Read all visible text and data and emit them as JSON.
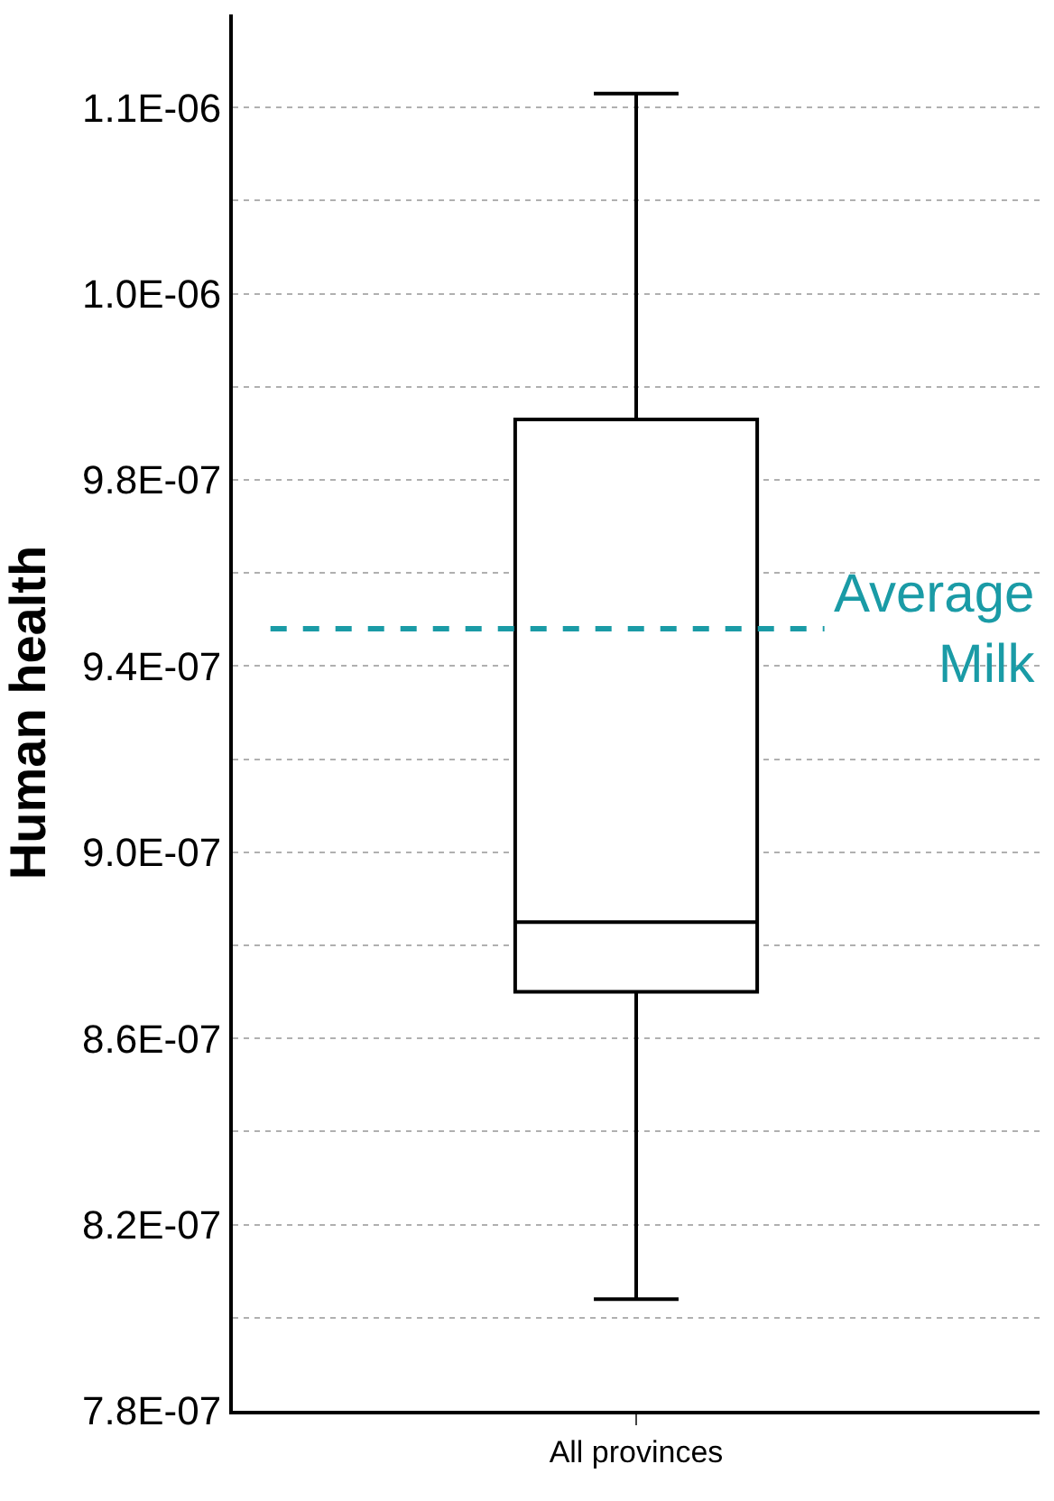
{
  "chart_data": {
    "type": "box",
    "ylabel": "Human health",
    "categories": [
      "All provinces"
    ],
    "series": [
      {
        "color": "#000000",
        "boxes": [
          {
            "low": 8.04e-07,
            "q1": 8.7e-07,
            "median": 8.85e-07,
            "q3": 9.93e-07,
            "high": 1.063e-06
          }
        ]
      }
    ],
    "ylim": [
      7.8e-07,
      1.08e-06
    ],
    "yticks": [
      {
        "value": 7.8e-07,
        "label": "7.8E-07"
      },
      {
        "value": 8e-07,
        "label": null
      },
      {
        "value": 8.2e-07,
        "label": "8.2E-07"
      },
      {
        "value": 8.4e-07,
        "label": null
      },
      {
        "value": 8.6e-07,
        "label": "8.6E-07"
      },
      {
        "value": 8.8e-07,
        "label": null
      },
      {
        "value": 9e-07,
        "label": "9.0E-07"
      },
      {
        "value": 9.2e-07,
        "label": null
      },
      {
        "value": 9.4e-07,
        "label": "9.4E-07"
      },
      {
        "value": 9.6e-07,
        "label": null
      },
      {
        "value": 9.8e-07,
        "label": "9.8E-07"
      },
      {
        "value": 1e-06,
        "label": null
      },
      {
        "value": 1.02e-06,
        "label": "1.0E-06"
      },
      {
        "value": 1.04e-06,
        "label": null
      },
      {
        "value": 1.06e-06,
        "label": "1.1E-06"
      }
    ],
    "ref_lines": [
      {
        "axis": "y",
        "value": 9.48e-07,
        "label": "Average Milk",
        "color": "#1a9ba6",
        "line_style": "dashed"
      }
    ],
    "grid": "y"
  }
}
